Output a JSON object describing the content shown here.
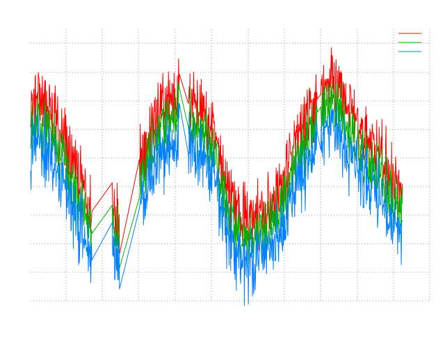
{
  "chart_data": {
    "type": "line",
    "title": "",
    "xlabel": "",
    "ylabel": "",
    "grid": true,
    "legend_position": "top-right",
    "xlim": [
      0,
      11
    ],
    "ylim": [
      0,
      10
    ],
    "series": [
      {
        "color": "#ff0000",
        "base_offset": 0.8,
        "noise_amp": 1.1,
        "values": []
      },
      {
        "color": "#00b000",
        "base_offset": 0.0,
        "noise_amp": 0.8,
        "values": []
      },
      {
        "color": "#0080ff",
        "base_offset": -0.9,
        "noise_amp": 1.1,
        "values": []
      }
    ],
    "x_segments": [
      [
        0,
        1.69
      ],
      [
        2.25,
        2.45
      ],
      [
        3.0,
        4.1
      ],
      [
        4.35,
        7.9
      ],
      [
        8.0,
        10.25
      ]
    ],
    "samples_per_unit": 90,
    "trend_points": [
      [
        0.0,
        6.4
      ],
      [
        0.25,
        6.6
      ],
      [
        0.6,
        6.0
      ],
      [
        1.0,
        4.8
      ],
      [
        1.3,
        3.8
      ],
      [
        1.69,
        2.4
      ],
      [
        2.25,
        2.9
      ],
      [
        2.45,
        2.3
      ],
      [
        3.0,
        4.6
      ],
      [
        3.6,
        6.2
      ],
      [
        4.1,
        7.1
      ],
      [
        4.35,
        6.8
      ],
      [
        4.8,
        6.0
      ],
      [
        5.15,
        5.0
      ],
      [
        5.4,
        3.4
      ],
      [
        5.9,
        2.2
      ],
      [
        6.4,
        2.4
      ],
      [
        6.9,
        3.3
      ],
      [
        7.3,
        4.9
      ],
      [
        7.9,
        6.6
      ],
      [
        8.0,
        6.9
      ],
      [
        8.4,
        7.4
      ],
      [
        8.75,
        6.2
      ],
      [
        9.2,
        5.2
      ],
      [
        9.6,
        4.8
      ],
      [
        10.0,
        3.6
      ],
      [
        10.25,
        3.0
      ]
    ]
  }
}
